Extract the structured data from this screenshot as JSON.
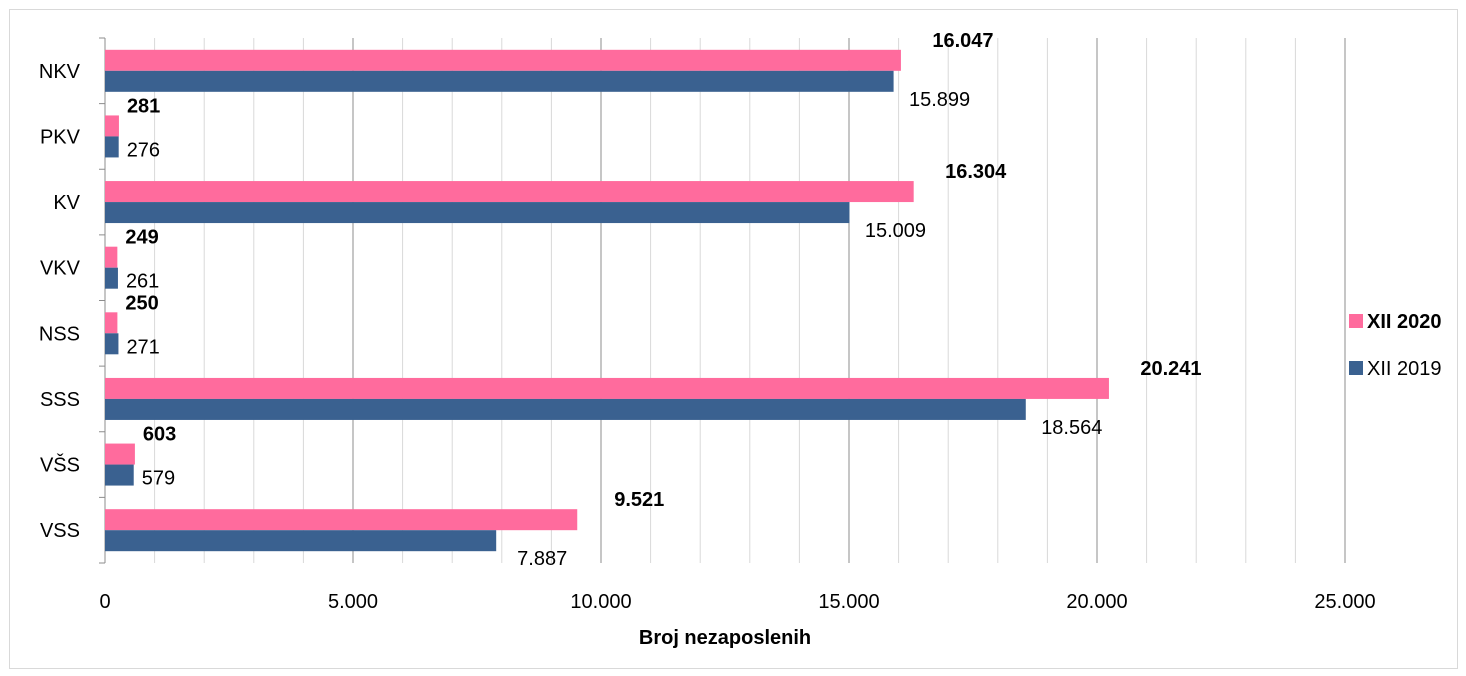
{
  "chart_data": {
    "type": "bar",
    "orientation": "horizontal",
    "categories": [
      "NKV",
      "PKV",
      "KV",
      "VKV",
      "NSS",
      "SSS",
      "VŠS",
      "VSS"
    ],
    "series": [
      {
        "name": "XII 2020",
        "color": "#ff6b9d",
        "values": [
          16047,
          281,
          16304,
          249,
          250,
          20241,
          603,
          9521
        ],
        "labels": [
          "16.047",
          "281",
          "16.304",
          "249",
          "250",
          "20.241",
          "603",
          "9.521"
        ],
        "bold": true
      },
      {
        "name": "XII 2019",
        "color": "#3a6190",
        "values": [
          15899,
          276,
          15009,
          261,
          271,
          18564,
          579,
          7887
        ],
        "labels": [
          "15.899",
          "276",
          "15.009",
          "261",
          "271",
          "18.564",
          "579",
          "7.887"
        ],
        "bold": false
      }
    ],
    "xlim": [
      0,
      25000
    ],
    "xticks": [
      0,
      5000,
      10000,
      15000,
      20000,
      25000
    ],
    "xtick_labels": [
      "0",
      "5.000",
      "10.000",
      "15.000",
      "20.000",
      "25.000"
    ],
    "xlabel": "Broj nezaposlenih",
    "grid": true,
    "legend": "right"
  }
}
